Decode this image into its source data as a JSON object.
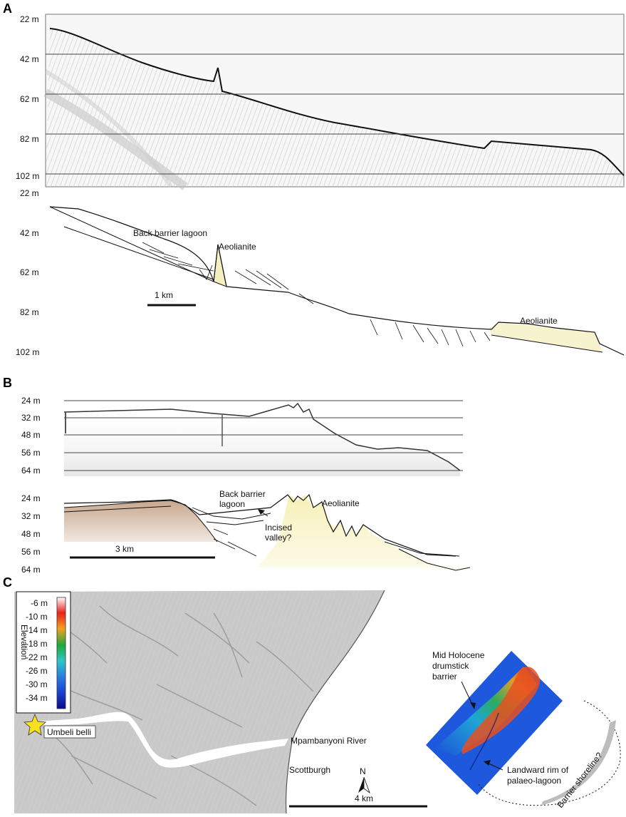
{
  "panels": {
    "a": {
      "letter": "A",
      "seismic_depth_ticks": [
        "22 m",
        "42 m",
        "62 m",
        "82 m",
        "102 m"
      ],
      "interp_depth_ticks": [
        "22 m",
        "42 m",
        "62 m",
        "82 m",
        "102 m"
      ],
      "labels": {
        "back_barrier_lagoon": "Back barrier lagoon",
        "aeolianite_1": "Aeolianite",
        "aeolianite_2": "Aeolianite",
        "scale_bar": "1 km"
      }
    },
    "b": {
      "letter": "B",
      "seismic_depth_ticks": [
        "24 m",
        "32 m",
        "48 m",
        "56 m",
        "64 m"
      ],
      "interp_depth_ticks": [
        "24 m",
        "32 m",
        "48 m",
        "56 m",
        "64 m"
      ],
      "labels": {
        "back_barrier_lagoon_line1": "Back barrier",
        "back_barrier_lagoon_line2": "lagoon",
        "aeolianite": "Aeolianite",
        "incised_valley_line1": "Incised",
        "incised_valley_line2": "valley?",
        "scale_bar": "3 km"
      }
    },
    "c": {
      "letter": "C",
      "legend": {
        "title": "Elevation",
        "ticks": [
          "-6 m",
          "-10 m",
          "-14 m",
          "-18 m",
          "-22 m",
          "-26 m",
          "-30 m",
          "-34 m"
        ],
        "colors": [
          "#ffffff",
          "#e8201b",
          "#f5a020",
          "#1ea83a",
          "#2ec6c8",
          "#2a7fe0",
          "#1b3fd0",
          "#0a0a8a"
        ]
      },
      "labels": {
        "site": "Umbeli belli",
        "river": "Mpambanyoni River",
        "town": "Scottburgh",
        "north": "N",
        "scale_bar": "4 km",
        "barrier_line1": "Mid Holocene",
        "barrier_line2": "drumstick",
        "barrier_line3": "barrier",
        "rim_line1": "Landward rim of",
        "rim_line2": "palaeo-lagoon",
        "shoreline": "Barrier shoreline?"
      }
    }
  }
}
